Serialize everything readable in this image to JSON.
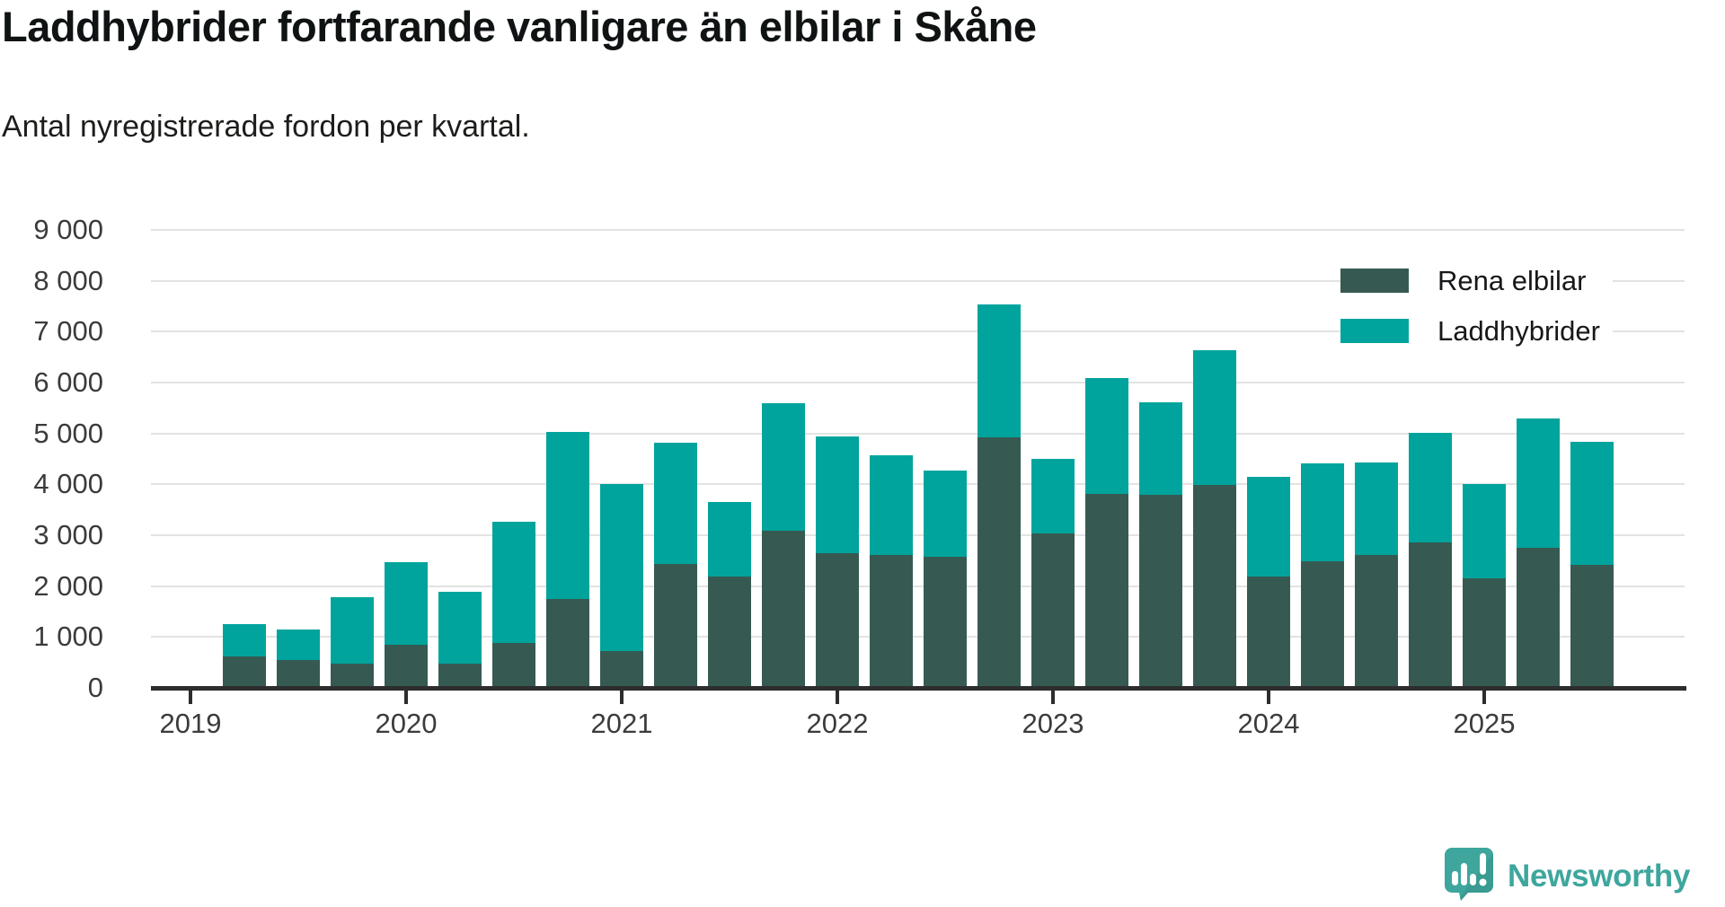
{
  "title": "Laddhybrider fortfarande vanligare än elbilar i Skåne",
  "subtitle": "Antal nyregistrerade fordon per kvartal.",
  "colors": {
    "rena_elbilar": "#365a52",
    "laddhybrider": "#00a49c",
    "axis": "#2d2d2d",
    "grid": "#e3e3e3",
    "title_text": "#101314",
    "tick_text": "#3b3b3b",
    "brand_teal": "#3ea69d"
  },
  "legend": {
    "items": [
      {
        "label": "Rena elbilar",
        "key": "rena_elbilar"
      },
      {
        "label": "Laddhybrider",
        "key": "laddhybrider"
      }
    ]
  },
  "footer": {
    "brand": "Newsworthy"
  },
  "chart_data": {
    "type": "bar",
    "stacked": true,
    "title": "Laddhybrider fortfarande vanligare än elbilar i Skåne",
    "subtitle": "Antal nyregistrerade fordon per kvartal.",
    "xlabel": "",
    "ylabel": "",
    "ylim": [
      0,
      9000
    ],
    "grid": true,
    "legend_position": "top-right-inside",
    "yticks": [
      {
        "value": 0,
        "label": "0"
      },
      {
        "value": 1000,
        "label": "1 000"
      },
      {
        "value": 2000,
        "label": "2 000"
      },
      {
        "value": 3000,
        "label": "3 000"
      },
      {
        "value": 4000,
        "label": "4 000"
      },
      {
        "value": 5000,
        "label": "5 000"
      },
      {
        "value": 6000,
        "label": "6 000"
      },
      {
        "value": 7000,
        "label": "7 000"
      },
      {
        "value": 8000,
        "label": "8 000"
      },
      {
        "value": 9000,
        "label": "9 000"
      }
    ],
    "x_year_ticks": [
      {
        "year": 2019,
        "label": "2019"
      },
      {
        "year": 2020,
        "label": "2020"
      },
      {
        "year": 2021,
        "label": "2021"
      },
      {
        "year": 2022,
        "label": "2022"
      },
      {
        "year": 2023,
        "label": "2023"
      },
      {
        "year": 2024,
        "label": "2024"
      },
      {
        "year": 2025,
        "label": "2025"
      }
    ],
    "series_names": [
      "Rena elbilar",
      "Laddhybrider"
    ],
    "quarters": [
      {
        "label": "2019 K2",
        "t": 2019.25,
        "rena_elbilar": 620,
        "laddhybrider": 630
      },
      {
        "label": "2019 K3",
        "t": 2019.5,
        "rena_elbilar": 550,
        "laddhybrider": 600
      },
      {
        "label": "2019 K4",
        "t": 2019.75,
        "rena_elbilar": 480,
        "laddhybrider": 1300
      },
      {
        "label": "2020 K1",
        "t": 2020.0,
        "rena_elbilar": 850,
        "laddhybrider": 1620
      },
      {
        "label": "2020 K2",
        "t": 2020.25,
        "rena_elbilar": 470,
        "laddhybrider": 1410
      },
      {
        "label": "2020 K3",
        "t": 2020.5,
        "rena_elbilar": 890,
        "laddhybrider": 2380
      },
      {
        "label": "2020 K4",
        "t": 2020.75,
        "rena_elbilar": 1750,
        "laddhybrider": 3290
      },
      {
        "label": "2021 K1",
        "t": 2021.0,
        "rena_elbilar": 720,
        "laddhybrider": 3290
      },
      {
        "label": "2021 K2",
        "t": 2021.25,
        "rena_elbilar": 2430,
        "laddhybrider": 2390
      },
      {
        "label": "2021 K3",
        "t": 2021.5,
        "rena_elbilar": 2180,
        "laddhybrider": 1470
      },
      {
        "label": "2021 K4",
        "t": 2021.75,
        "rena_elbilar": 3080,
        "laddhybrider": 2500
      },
      {
        "label": "2022 K1",
        "t": 2022.0,
        "rena_elbilar": 2650,
        "laddhybrider": 2300
      },
      {
        "label": "2022 K2",
        "t": 2022.25,
        "rena_elbilar": 2610,
        "laddhybrider": 1950
      },
      {
        "label": "2022 K3",
        "t": 2022.5,
        "rena_elbilar": 2570,
        "laddhybrider": 1690
      },
      {
        "label": "2022 K4",
        "t": 2022.75,
        "rena_elbilar": 4930,
        "laddhybrider": 2620
      },
      {
        "label": "2023 K1",
        "t": 2023.0,
        "rena_elbilar": 3030,
        "laddhybrider": 1470
      },
      {
        "label": "2023 K2",
        "t": 2023.25,
        "rena_elbilar": 3820,
        "laddhybrider": 2270
      },
      {
        "label": "2023 K3",
        "t": 2023.5,
        "rena_elbilar": 3790,
        "laddhybrider": 1810
      },
      {
        "label": "2023 K4",
        "t": 2023.75,
        "rena_elbilar": 3990,
        "laddhybrider": 2650
      },
      {
        "label": "2024 K1",
        "t": 2024.0,
        "rena_elbilar": 2190,
        "laddhybrider": 1960
      },
      {
        "label": "2024 K2",
        "t": 2024.25,
        "rena_elbilar": 2480,
        "laddhybrider": 1920
      },
      {
        "label": "2024 K3",
        "t": 2024.5,
        "rena_elbilar": 2620,
        "laddhybrider": 1820
      },
      {
        "label": "2024 K4",
        "t": 2024.75,
        "rena_elbilar": 2860,
        "laddhybrider": 2160
      },
      {
        "label": "2025 K1",
        "t": 2025.0,
        "rena_elbilar": 2150,
        "laddhybrider": 1850
      },
      {
        "label": "2025 K2",
        "t": 2025.25,
        "rena_elbilar": 2760,
        "laddhybrider": 2540
      },
      {
        "label": "2025 K3",
        "t": 2025.5,
        "rena_elbilar": 2420,
        "laddhybrider": 2410
      }
    ]
  }
}
